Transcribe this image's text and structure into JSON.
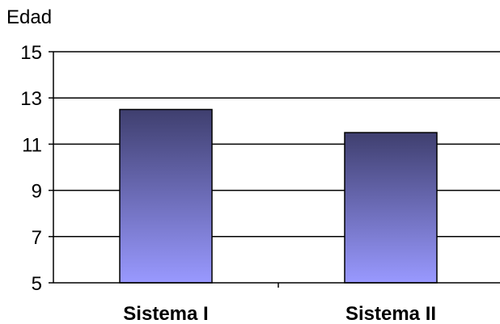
{
  "chart_data": {
    "type": "bar",
    "ylabel": "Edad",
    "xlabel": "",
    "title": "",
    "categories": [
      "Sistema I",
      "Sistema II"
    ],
    "values": [
      12.5,
      11.5
    ],
    "ylim": [
      5,
      15
    ],
    "yticks": [
      5,
      7,
      9,
      11,
      13,
      15
    ],
    "grid": true,
    "legend": "none",
    "bar_gradient_top": "#3f3f6f",
    "bar_gradient_bottom": "#9999ff",
    "axis_color": "#000000"
  }
}
